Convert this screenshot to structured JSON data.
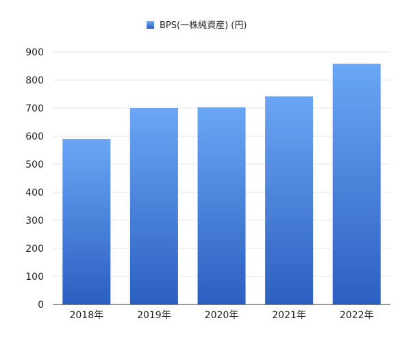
{
  "chart_data": {
    "type": "bar",
    "categories": [
      "2018年",
      "2019年",
      "2020年",
      "2021年",
      "2022年"
    ],
    "series": [
      {
        "name": "BPS(一株純資産) (円)",
        "values": [
          590,
          700,
          703,
          742,
          858
        ]
      }
    ],
    "title": "",
    "xlabel": "",
    "ylabel": "",
    "ylim": [
      0,
      900
    ],
    "yticks": [
      "0",
      "100",
      "200",
      "300",
      "400",
      "500",
      "600",
      "700",
      "800",
      "900"
    ],
    "grid": true,
    "legend_position": "top-center",
    "colors": {
      "bar_top": "#6aa6f5",
      "bar_bottom": "#2b5fc0",
      "grid": "#e6e6e6",
      "axis": "#333333"
    }
  }
}
